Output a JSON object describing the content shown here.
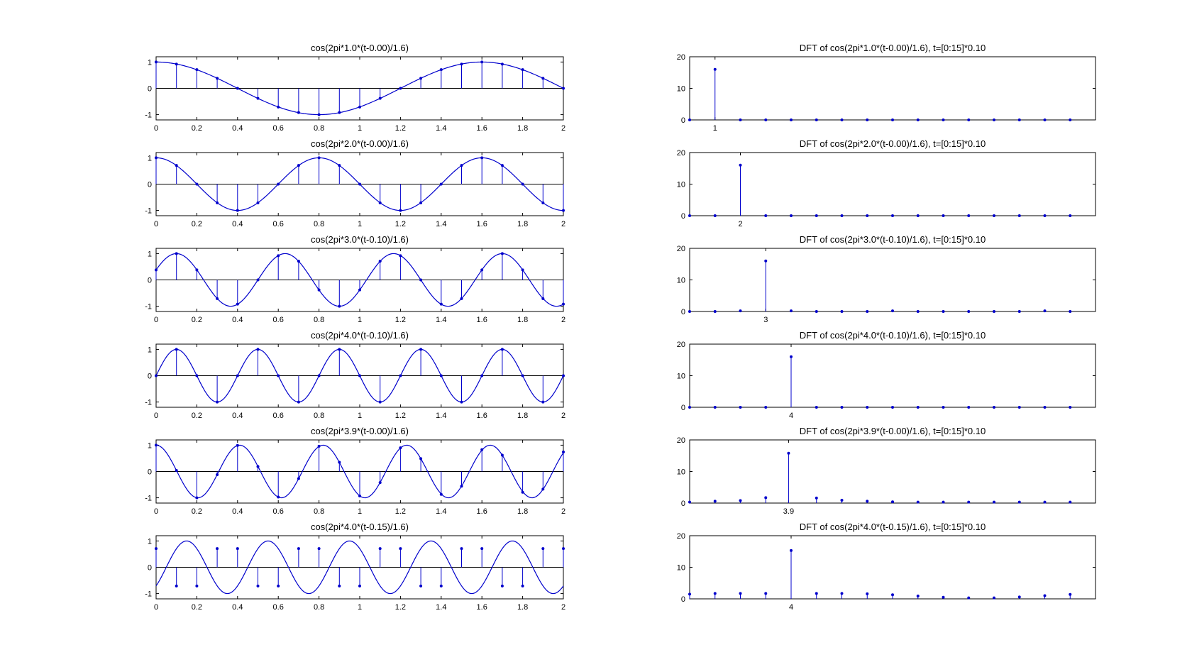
{
  "figure": {
    "background": "#ffffff",
    "line_color": "#0000cc",
    "axis_color": "#000000"
  },
  "chart_data": [
    {
      "id": "s1",
      "type": "line",
      "title": "cos(2pi*1.0*(t-0.00)/1.6)",
      "f": 1.0,
      "shift": 0.0,
      "xlim": [
        0,
        2
      ],
      "ylim": [
        -1.2,
        1.2
      ],
      "xticks": [
        "0",
        "0.2",
        "0.4",
        "0.6",
        "0.8",
        "1",
        "1.2",
        "1.4",
        "1.6",
        "1.8",
        "2"
      ],
      "yticks": [
        "-1",
        "0",
        "1"
      ],
      "stem_x": [
        0,
        0.1,
        0.2,
        0.3,
        0.4,
        0.5,
        0.6,
        0.7,
        0.8,
        0.9,
        1.0,
        1.1,
        1.2,
        1.3,
        1.4,
        1.5,
        1.6,
        1.7,
        1.8,
        1.9,
        2.0
      ],
      "stem_y": [
        1,
        0.92,
        0.71,
        0.38,
        0,
        -0.38,
        -0.71,
        -0.92,
        -1,
        -0.92,
        -0.71,
        -0.38,
        0,
        0.38,
        0.71,
        0.92,
        1,
        0.92,
        0.71,
        0.38,
        0
      ]
    },
    {
      "id": "s2",
      "type": "line",
      "title": "cos(2pi*2.0*(t-0.00)/1.6)",
      "f": 2.0,
      "shift": 0.0,
      "xlim": [
        0,
        2
      ],
      "ylim": [
        -1.2,
        1.2
      ],
      "xticks": [
        "0",
        "0.2",
        "0.4",
        "0.6",
        "0.8",
        "1",
        "1.2",
        "1.4",
        "1.6",
        "1.8",
        "2"
      ],
      "yticks": [
        "-1",
        "0",
        "1"
      ],
      "stem_x": [
        0,
        0.1,
        0.2,
        0.3,
        0.4,
        0.5,
        0.6,
        0.7,
        0.8,
        0.9,
        1.0,
        1.1,
        1.2,
        1.3,
        1.4,
        1.5,
        1.6,
        1.7,
        1.8,
        1.9,
        2.0
      ],
      "stem_y": [
        1,
        0.71,
        0,
        -0.71,
        -1,
        -0.71,
        0,
        0.71,
        1,
        0.71,
        0,
        -0.71,
        -1,
        -0.71,
        0,
        0.71,
        1,
        0.71,
        0,
        -0.71,
        -1
      ]
    },
    {
      "id": "s3",
      "type": "line",
      "title": "cos(2pi*3.0*(t-0.10)/1.6)",
      "f": 3.0,
      "shift": 0.1,
      "xlim": [
        0,
        2
      ],
      "ylim": [
        -1.2,
        1.2
      ],
      "xticks": [
        "0",
        "0.2",
        "0.4",
        "0.6",
        "0.8",
        "1",
        "1.2",
        "1.4",
        "1.6",
        "1.8",
        "2"
      ],
      "yticks": [
        "-1",
        "0",
        "1"
      ],
      "stem_x": [
        0,
        0.1,
        0.2,
        0.3,
        0.4,
        0.5,
        0.6,
        0.7,
        0.8,
        0.9,
        1.0,
        1.1,
        1.2,
        1.3,
        1.4,
        1.5,
        1.6,
        1.7,
        1.8,
        1.9,
        2.0
      ],
      "stem_y": [
        0.38,
        1,
        0.38,
        -0.71,
        -0.92,
        0,
        0.92,
        0.71,
        -0.38,
        -1,
        -0.38,
        0.71,
        0.92,
        0,
        -0.92,
        -0.71,
        0.38,
        1,
        0.38,
        -0.71,
        -0.92
      ]
    },
    {
      "id": "s4",
      "type": "line",
      "title": "cos(2pi*4.0*(t-0.10)/1.6)",
      "f": 4.0,
      "shift": 0.1,
      "xlim": [
        0,
        2
      ],
      "ylim": [
        -1.2,
        1.2
      ],
      "xticks": [
        "0",
        "0.2",
        "0.4",
        "0.6",
        "0.8",
        "1",
        "1.2",
        "1.4",
        "1.6",
        "1.8",
        "2"
      ],
      "yticks": [
        "-1",
        "0",
        "1"
      ],
      "stem_x": [
        0,
        0.1,
        0.2,
        0.3,
        0.4,
        0.5,
        0.6,
        0.7,
        0.8,
        0.9,
        1.0,
        1.1,
        1.2,
        1.3,
        1.4,
        1.5,
        1.6,
        1.7,
        1.8,
        1.9,
        2.0
      ],
      "stem_y": [
        0,
        1,
        0,
        -1,
        0,
        1,
        0,
        -1,
        0,
        1,
        0,
        -1,
        0,
        1,
        0,
        -1,
        0,
        1,
        0,
        -1,
        0
      ]
    },
    {
      "id": "s5",
      "type": "line",
      "title": "cos(2pi*3.9*(t-0.00)/1.6)",
      "f": 3.9,
      "shift": 0.0,
      "xlim": [
        0,
        2
      ],
      "ylim": [
        -1.2,
        1.2
      ],
      "xticks": [
        "0",
        "0.2",
        "0.4",
        "0.6",
        "0.8",
        "1",
        "1.2",
        "1.4",
        "1.6",
        "1.8",
        "2"
      ],
      "yticks": [
        "-1",
        "0",
        "1"
      ],
      "stem_x": [
        0,
        0.1,
        0.2,
        0.3,
        0.4,
        0.5,
        0.6,
        0.7,
        0.8,
        0.9,
        1.0,
        1.1,
        1.2,
        1.3,
        1.4,
        1.5,
        1.6,
        1.7,
        1.8,
        1.9,
        2.0
      ],
      "stem_y": [
        1,
        0.04,
        -1,
        -0.12,
        0.99,
        0.19,
        -0.97,
        -0.27,
        0.96,
        0.35,
        -0.93,
        -0.42,
        0.9,
        0.49,
        -0.87,
        -0.56,
        0.83,
        0.62,
        -0.79,
        -0.67,
        0.74
      ]
    },
    {
      "id": "s6",
      "type": "line",
      "title": "cos(2pi*4.0*(t-0.15)/1.6)",
      "f": 4.0,
      "shift": 0.15,
      "xlim": [
        0,
        2
      ],
      "ylim": [
        -1.2,
        1.2
      ],
      "xticks": [
        "0",
        "0.2",
        "0.4",
        "0.6",
        "0.8",
        "1",
        "1.2",
        "1.4",
        "1.6",
        "1.8",
        "2"
      ],
      "yticks": [
        "-1",
        "0",
        "1"
      ],
      "stem_x": [
        0,
        0.1,
        0.2,
        0.3,
        0.4,
        0.5,
        0.6,
        0.7,
        0.8,
        0.9,
        1.0,
        1.1,
        1.2,
        1.3,
        1.4,
        1.5,
        1.6,
        1.7,
        1.8,
        1.9,
        2.0
      ],
      "stem_y": [
        0.71,
        -0.71,
        -0.71,
        0.71,
        0.71,
        -0.71,
        -0.71,
        0.71,
        0.71,
        -0.71,
        -0.71,
        0.71,
        0.71,
        -0.71,
        -0.71,
        0.71,
        0.71,
        -0.71,
        -0.71,
        0.71,
        0.71
      ]
    },
    {
      "id": "d1",
      "type": "stem",
      "title": "DFT of cos(2pi*1.0*(t-0.00)/1.6), t=[0:15]*0.10",
      "xlim": [
        0,
        16
      ],
      "ylim": [
        0,
        20
      ],
      "xtick_label": "1",
      "xtick_pos": 1,
      "yticks": [
        "0",
        "10",
        "20"
      ],
      "values": [
        0,
        16,
        0,
        0,
        0,
        0,
        0,
        0,
        0,
        0,
        0,
        0,
        0,
        0,
        0,
        0
      ]
    },
    {
      "id": "d2",
      "type": "stem",
      "title": "DFT of cos(2pi*2.0*(t-0.00)/1.6), t=[0:15]*0.10",
      "xlim": [
        0,
        16
      ],
      "ylim": [
        0,
        20
      ],
      "xtick_label": "2",
      "xtick_pos": 2,
      "yticks": [
        "0",
        "10",
        "20"
      ],
      "values": [
        0,
        0,
        16,
        0,
        0,
        0,
        0,
        0,
        0,
        0,
        0,
        0,
        0,
        0,
        0,
        0
      ]
    },
    {
      "id": "d3",
      "type": "stem",
      "title": "DFT of cos(2pi*3.0*(t-0.10)/1.6), t=[0:15]*0.10",
      "xlim": [
        0,
        16
      ],
      "ylim": [
        0,
        20
      ],
      "xtick_label": "3",
      "xtick_pos": 3,
      "yticks": [
        "0",
        "10",
        "20"
      ],
      "values": [
        0,
        0,
        0.2,
        16,
        0.2,
        0,
        0,
        0,
        0.2,
        0,
        0,
        0,
        0,
        0,
        0.2,
        0
      ]
    },
    {
      "id": "d4",
      "type": "stem",
      "title": "DFT of cos(2pi*4.0*(t-0.10)/1.6), t=[0:15]*0.10",
      "xlim": [
        0,
        16
      ],
      "ylim": [
        0,
        20
      ],
      "xtick_label": "4",
      "xtick_pos": 4,
      "yticks": [
        "0",
        "10",
        "20"
      ],
      "values": [
        0,
        0,
        0,
        0,
        16,
        0,
        0,
        0,
        0,
        0,
        0,
        0,
        0,
        0,
        0,
        0
      ]
    },
    {
      "id": "d5",
      "type": "stem",
      "title": "DFT of cos(2pi*3.9*(t-0.00)/1.6), t=[0:15]*0.10",
      "xlim": [
        0,
        16
      ],
      "ylim": [
        0,
        20
      ],
      "xtick_label": "3.9",
      "xtick_pos": 3.9,
      "yticks": [
        "0",
        "10",
        "20"
      ],
      "values": [
        0.3,
        0.6,
        0.8,
        1.7,
        15.8,
        1.6,
        0.9,
        0.6,
        0.4,
        0.3,
        0.3,
        0.3,
        0.3,
        0.3,
        0.3,
        0.3
      ],
      "positions": [
        0,
        1,
        2,
        3,
        3.9,
        5,
        6,
        7,
        8,
        9,
        10,
        11,
        12,
        13,
        14,
        15
      ]
    },
    {
      "id": "d6",
      "type": "stem",
      "title": "DFT of cos(2pi*4.0*(t-0.15)/1.6), t=[0:15]*0.10",
      "xlim": [
        0,
        16
      ],
      "ylim": [
        0,
        20
      ],
      "xtick_label": "4",
      "xtick_pos": 4,
      "yticks": [
        "0",
        "10",
        "20"
      ],
      "values": [
        1.5,
        1.7,
        1.7,
        1.7,
        15.3,
        1.7,
        1.7,
        1.6,
        1.3,
        0.9,
        0.5,
        0.3,
        0.3,
        0.6,
        1.0,
        1.4
      ]
    }
  ]
}
